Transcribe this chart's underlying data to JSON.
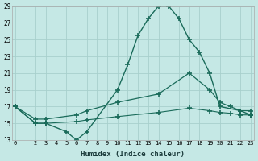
{
  "xlabel": "Humidex (Indice chaleur)",
  "background_color": "#c5e8e5",
  "grid_color": "#a8d0cc",
  "line_color": "#1a6b5a",
  "x_min": 0,
  "x_max": 23,
  "y_min": 13,
  "y_max": 29,
  "line1_x": [
    0,
    2,
    3,
    5,
    6,
    7,
    10,
    11,
    12,
    13,
    14,
    15,
    16,
    17,
    18,
    19,
    20,
    22,
    23
  ],
  "line1_y": [
    17,
    15,
    15,
    14,
    13,
    14,
    19,
    22,
    25.5,
    27.5,
    29,
    29,
    27.5,
    25,
    23.5,
    21,
    17,
    16.5,
    16
  ],
  "line2_x": [
    0,
    2,
    3,
    6,
    7,
    10,
    14,
    17,
    19,
    20,
    21,
    22,
    23
  ],
  "line2_y": [
    17,
    15.5,
    15.5,
    16,
    16.5,
    17.5,
    18.5,
    21,
    19,
    17.5,
    17,
    16.5,
    16.5
  ],
  "line3_x": [
    0,
    2,
    3,
    6,
    7,
    10,
    14,
    17,
    19,
    20,
    21,
    22,
    23
  ],
  "line3_y": [
    17,
    15,
    15,
    15.2,
    15.4,
    15.8,
    16.3,
    16.8,
    16.5,
    16.3,
    16.2,
    16,
    16
  ],
  "xtick_positions": [
    0,
    2,
    3,
    4,
    5,
    6,
    7,
    8,
    9,
    10,
    11,
    12,
    13,
    14,
    15,
    16,
    17,
    18,
    19,
    20,
    21,
    22,
    23
  ],
  "xtick_labels": [
    "0",
    "2",
    "3",
    "4",
    "5",
    "6",
    "7",
    "8",
    "9",
    "10",
    "11",
    "12",
    "13",
    "14",
    "15",
    "16",
    "17",
    "18",
    "19",
    "20",
    "21",
    "22",
    "23"
  ],
  "ytick_positions": [
    13,
    15,
    17,
    19,
    21,
    23,
    25,
    27,
    29
  ]
}
